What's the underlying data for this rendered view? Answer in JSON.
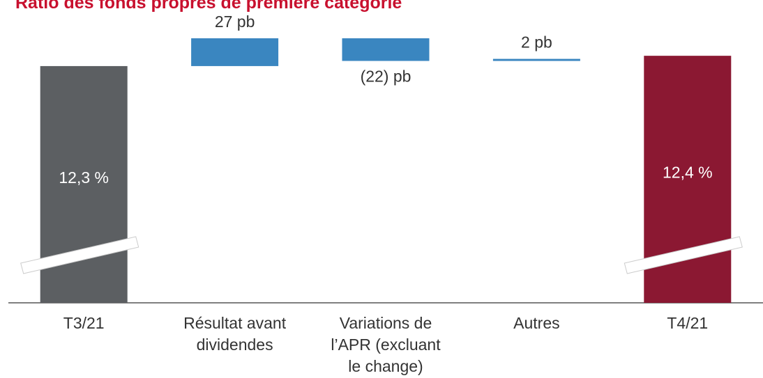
{
  "chart_data": {
    "type": "waterfall",
    "title": "Ratio des fonds propres de première catégorie",
    "categories": [
      "T3/21",
      "Résultat avant\ndividendes",
      "Variations de\nl’APR (excluant\nle change)",
      "Autres",
      "T4/21"
    ],
    "measure": [
      "total",
      "relative",
      "relative",
      "relative",
      "total"
    ],
    "values": [
      12.3,
      27,
      -22,
      2,
      12.4
    ],
    "value_labels": [
      "12,3 %",
      "27 pb",
      "(22) pb",
      "2 pb",
      "12,4 %"
    ],
    "colors": [
      "#5c5f62",
      "#3a86c0",
      "#3a86c0",
      "#3a86c0",
      "#8b1832"
    ],
    "ylim": [
      10,
      12.8
    ],
    "broken_axis": true
  }
}
